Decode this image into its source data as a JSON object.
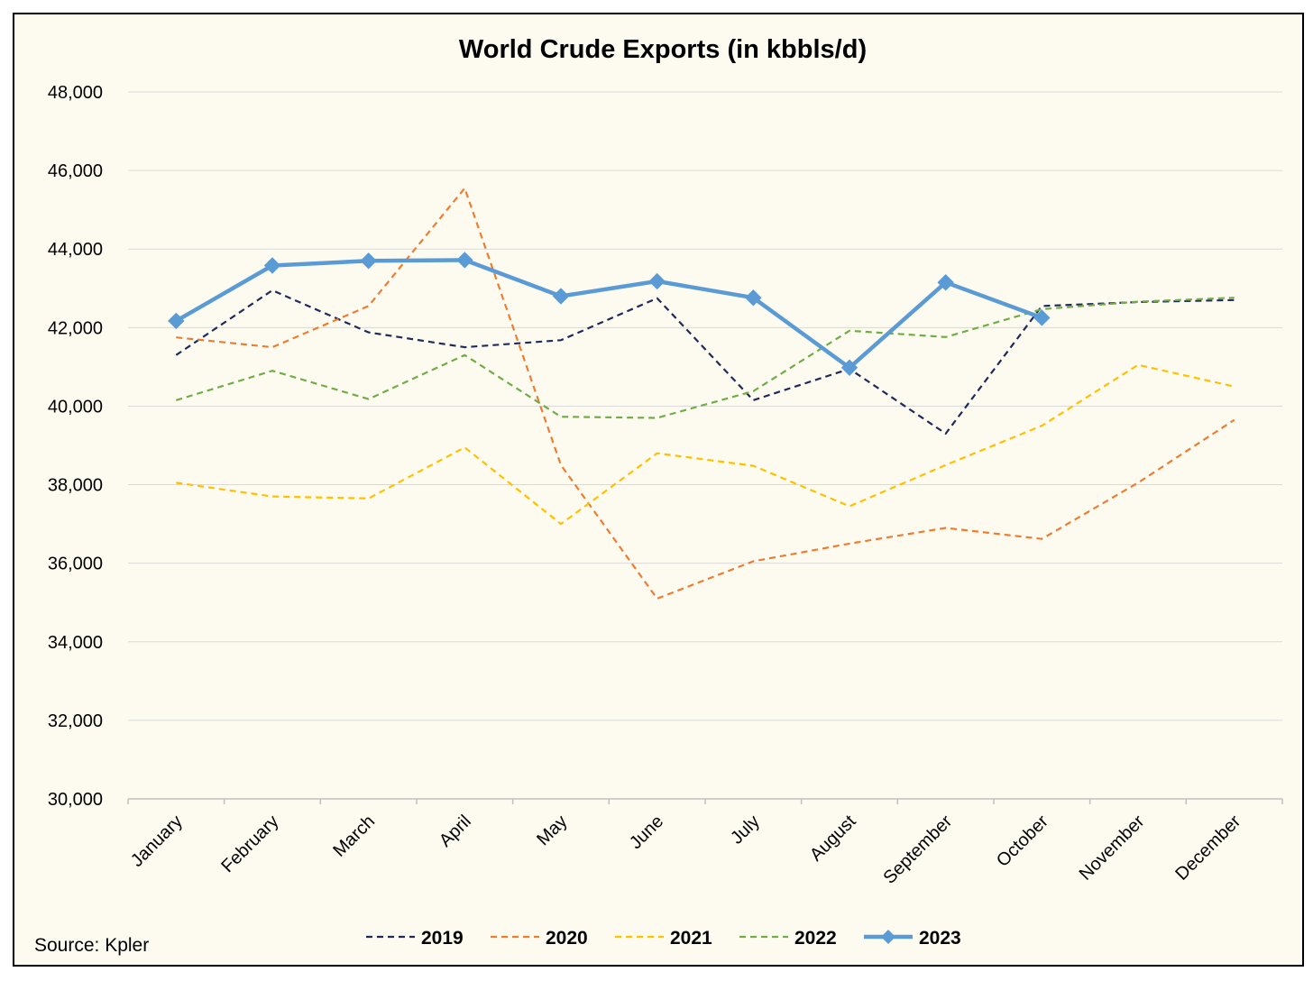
{
  "chart_data": {
    "type": "line",
    "title": "World Crude Exports (in kbbls/d)",
    "source": "Source: Kpler",
    "xlabel": "",
    "ylabel": "",
    "ylim": [
      30000,
      48000
    ],
    "ytick_step": 2000,
    "ytick_labels": [
      "30,000",
      "32,000",
      "34,000",
      "36,000",
      "38,000",
      "40,000",
      "42,000",
      "44,000",
      "46,000",
      "48,000"
    ],
    "grid": true,
    "legend_position": "bottom",
    "categories": [
      "January",
      "February",
      "March",
      "April",
      "May",
      "June",
      "July",
      "August",
      "September",
      "October",
      "November",
      "December"
    ],
    "series": [
      {
        "name": "2019",
        "color": "#1f2a5a",
        "style": "dashed",
        "values": [
          41300,
          42950,
          41880,
          41500,
          41680,
          42750,
          40150,
          40950,
          39300,
          42550,
          42650,
          42700
        ]
      },
      {
        "name": "2020",
        "color": "#ed7d31",
        "style": "dashed",
        "values": [
          41750,
          41500,
          42550,
          45550,
          38500,
          35100,
          36050,
          36500,
          36900,
          36620,
          38050,
          39650
        ]
      },
      {
        "name": "2021",
        "color": "#ffc000",
        "style": "dashed",
        "values": [
          38050,
          37700,
          37650,
          38950,
          37000,
          38800,
          38480,
          37450,
          38500,
          39500,
          41050,
          40500
        ]
      },
      {
        "name": "2022",
        "color": "#70ad47",
        "style": "dashed",
        "values": [
          40150,
          40900,
          40180,
          41300,
          39730,
          39700,
          40380,
          41920,
          41760,
          42470,
          42660,
          42760
        ]
      },
      {
        "name": "2023",
        "color": "#5b9bd5",
        "style": "solid-diamond",
        "values": [
          42170,
          43580,
          43700,
          43720,
          42800,
          43180,
          42760,
          40980,
          43150,
          42250,
          null,
          null
        ]
      }
    ]
  }
}
